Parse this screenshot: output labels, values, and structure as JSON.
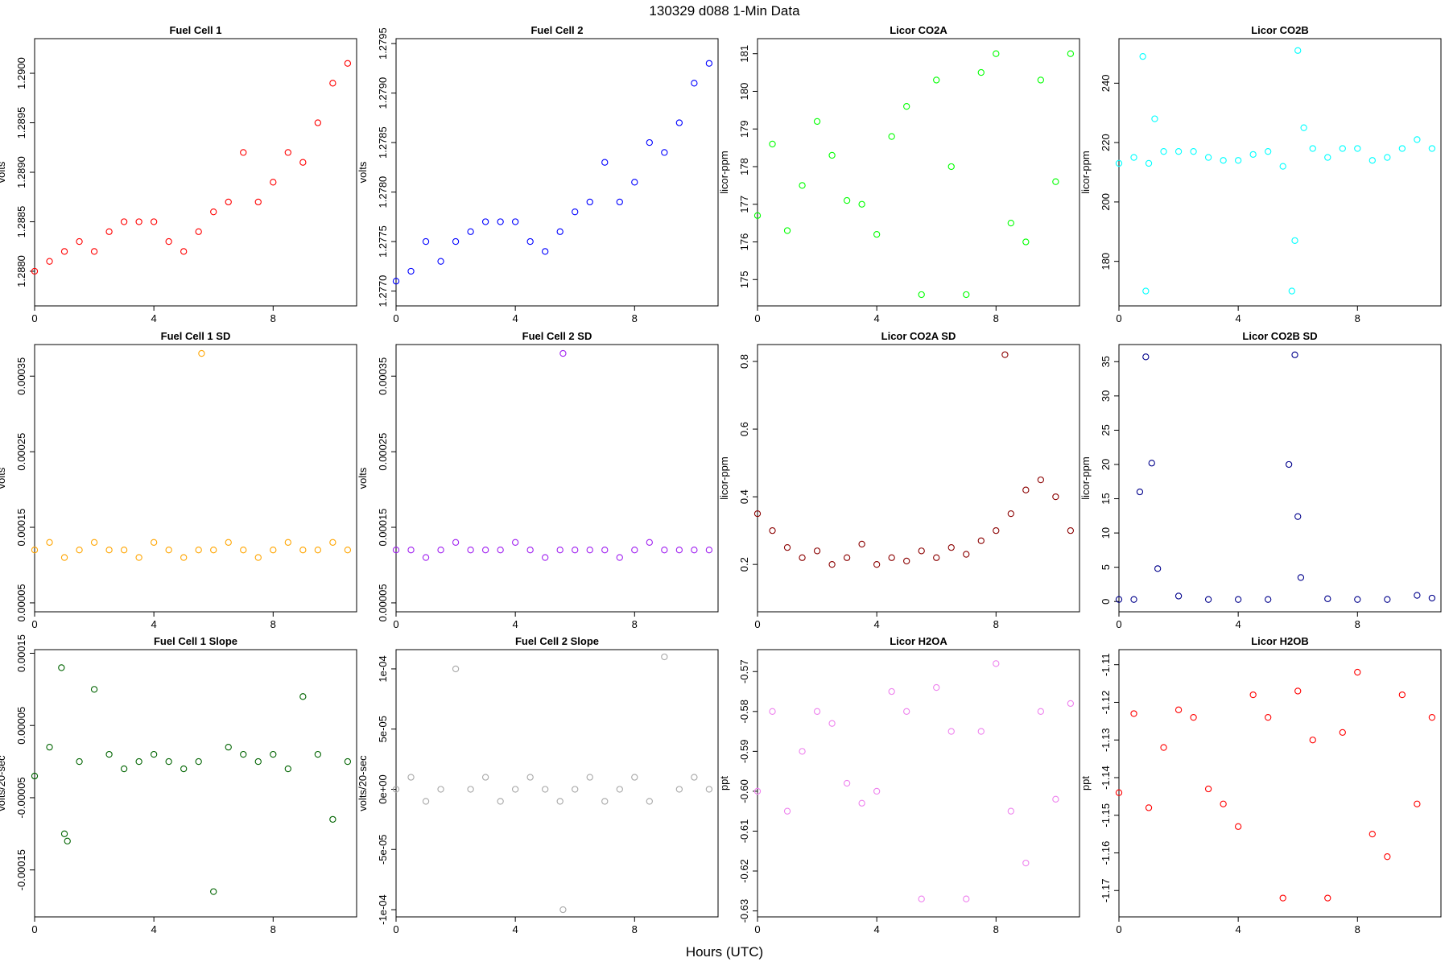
{
  "figure": {
    "title": "130329    d088    1-Min Data",
    "xlabel": "Hours (UTC)"
  },
  "chart_data": [
    {
      "type": "scatter",
      "title": "Fuel Cell 1",
      "xlabel": "",
      "ylabel": "volts",
      "color": "#ff0000",
      "xlim": [
        0,
        10.8
      ],
      "ylim": [
        1.28765,
        1.29035
      ],
      "xticks": [
        0,
        4,
        8
      ],
      "xtick_labels": [
        "0",
        "4",
        "8"
      ],
      "yticks": [
        1.288,
        1.2885,
        1.289,
        1.2895,
        1.29
      ],
      "ytick_labels": [
        "1.2880",
        "1.2885",
        "1.2890",
        "1.2895",
        "1.2900"
      ],
      "series": [
        {
          "x": [
            0,
            0.5,
            1,
            1.5,
            2,
            2.5,
            3,
            3.5,
            4,
            4.5,
            5,
            5.5,
            6,
            6.5,
            7,
            7.5,
            8,
            8.5,
            9,
            9.5,
            10,
            10.5
          ],
          "y": [
            1.288,
            1.2881,
            1.2882,
            1.2883,
            1.2882,
            1.2884,
            1.2885,
            1.2885,
            1.2885,
            1.2883,
            1.2882,
            1.2884,
            1.2886,
            1.2887,
            1.2892,
            1.2887,
            1.2889,
            1.2892,
            1.2891,
            1.2895,
            1.2899,
            1.2901
          ]
        }
      ]
    },
    {
      "type": "scatter",
      "title": "Fuel Cell 2",
      "xlabel": "",
      "ylabel": "volts",
      "color": "#0000ff",
      "xlim": [
        0,
        10.8
      ],
      "ylim": [
        1.27685,
        1.27955
      ],
      "xticks": [
        0,
        4,
        8
      ],
      "xtick_labels": [
        "0",
        "4",
        "8"
      ],
      "yticks": [
        1.277,
        1.2775,
        1.278,
        1.2785,
        1.279,
        1.2795
      ],
      "ytick_labels": [
        "1.2770",
        "1.2775",
        "1.2780",
        "1.2785",
        "1.2790",
        "1.2795"
      ],
      "series": [
        {
          "x": [
            0,
            0.5,
            1,
            1.5,
            2,
            2.5,
            3,
            3.5,
            4,
            4.5,
            5,
            5.5,
            6,
            6.5,
            7,
            7.5,
            8,
            8.5,
            9,
            9.5,
            10,
            10.5
          ],
          "y": [
            1.2771,
            1.2772,
            1.2775,
            1.2773,
            1.2775,
            1.2776,
            1.2777,
            1.2777,
            1.2777,
            1.2775,
            1.2774,
            1.2776,
            1.2778,
            1.2779,
            1.2783,
            1.2779,
            1.2781,
            1.2785,
            1.2784,
            1.2787,
            1.2791,
            1.2793
          ]
        }
      ]
    },
    {
      "type": "scatter",
      "title": "Licor CO2A",
      "xlabel": "",
      "ylabel": "licor-ppm",
      "color": "#00ff00",
      "xlim": [
        0,
        10.8
      ],
      "ylim": [
        174.3,
        181.4
      ],
      "xticks": [
        0,
        4,
        8
      ],
      "xtick_labels": [
        "0",
        "4",
        "8"
      ],
      "yticks": [
        175,
        176,
        177,
        178,
        179,
        180,
        181
      ],
      "ytick_labels": [
        "175",
        "176",
        "177",
        "178",
        "179",
        "180",
        "181"
      ],
      "series": [
        {
          "x": [
            0,
            0.5,
            1,
            1.5,
            2,
            2.5,
            3,
            3.5,
            4,
            4.5,
            5,
            5.5,
            6,
            6.5,
            7,
            7.5,
            8,
            8.5,
            9,
            9.5,
            10,
            10.5
          ],
          "y": [
            176.7,
            178.6,
            176.3,
            177.5,
            179.2,
            178.3,
            177.1,
            177.0,
            176.2,
            178.8,
            179.6,
            174.6,
            180.3,
            178.0,
            174.6,
            180.5,
            181.0,
            176.5,
            176.0,
            180.3,
            177.6,
            181.0
          ]
        }
      ]
    },
    {
      "type": "scatter",
      "title": "Licor CO2B",
      "xlabel": "",
      "ylabel": "licor-ppm",
      "color": "#00ffff",
      "xlim": [
        0,
        10.8
      ],
      "ylim": [
        165,
        255
      ],
      "xticks": [
        0,
        4,
        8
      ],
      "xtick_labels": [
        "0",
        "4",
        "8"
      ],
      "yticks": [
        180,
        200,
        220,
        240
      ],
      "ytick_labels": [
        "180",
        "200",
        "220",
        "240"
      ],
      "series": [
        {
          "x": [
            0,
            0.5,
            0.8,
            0.9,
            1.0,
            1.2,
            1.5,
            2,
            2.5,
            3,
            3.5,
            4,
            4.5,
            5,
            5.5,
            5.8,
            5.9,
            6.0,
            6.2,
            6.5,
            7,
            7.5,
            8,
            8.5,
            9,
            9.5,
            10,
            10.5
          ],
          "y": [
            213,
            215,
            249,
            170,
            213,
            228,
            217,
            217,
            217,
            215,
            214,
            214,
            216,
            217,
            212,
            170,
            187,
            251,
            225,
            218,
            215,
            218,
            218,
            214,
            215,
            218,
            221,
            218
          ]
        }
      ]
    },
    {
      "type": "scatter",
      "title": "Fuel Cell 1 SD",
      "xlabel": "",
      "ylabel": "volts",
      "color": "#ffa500",
      "xlim": [
        0,
        10.8
      ],
      "ylim": [
        3.82e-05,
        0.0003918
      ],
      "xticks": [
        0,
        4,
        8
      ],
      "xtick_labels": [
        "0",
        "4",
        "8"
      ],
      "yticks": [
        5e-05,
        0.00015,
        0.00025,
        0.00035
      ],
      "ytick_labels": [
        "0.00005",
        "0.00015",
        "0.00025",
        "0.00035"
      ],
      "series": [
        {
          "x": [
            0,
            0.5,
            1,
            1.5,
            2,
            2.5,
            3,
            3.5,
            4,
            4.5,
            5,
            5.5,
            5.6,
            6,
            6.5,
            7,
            7.5,
            8,
            8.5,
            9,
            9.5,
            10,
            10.5
          ],
          "y": [
            0.00012,
            0.00013,
            0.00011,
            0.00012,
            0.00013,
            0.00012,
            0.00012,
            0.00011,
            0.00013,
            0.00012,
            0.00011,
            0.00012,
            0.00038,
            0.00012,
            0.00013,
            0.00012,
            0.00011,
            0.00012,
            0.00013,
            0.00012,
            0.00012,
            0.00013,
            0.00012
          ]
        }
      ]
    },
    {
      "type": "scatter",
      "title": "Fuel Cell 2 SD",
      "xlabel": "",
      "ylabel": "volts",
      "color": "#a020f0",
      "xlim": [
        0,
        10.8
      ],
      "ylim": [
        3.82e-05,
        0.0003918
      ],
      "xticks": [
        0,
        4,
        8
      ],
      "xtick_labels": [
        "0",
        "4",
        "8"
      ],
      "yticks": [
        5e-05,
        0.00015,
        0.00025,
        0.00035
      ],
      "ytick_labels": [
        "0.00005",
        "0.00015",
        "0.00025",
        "0.00035"
      ],
      "series": [
        {
          "x": [
            0,
            0.5,
            1,
            1.5,
            2,
            2.5,
            3,
            3.5,
            4,
            4.5,
            5,
            5.5,
            5.6,
            6,
            6.5,
            7,
            7.5,
            8,
            8.5,
            9,
            9.5,
            10,
            10.5
          ],
          "y": [
            0.00012,
            0.00012,
            0.00011,
            0.00012,
            0.00013,
            0.00012,
            0.00012,
            0.00012,
            0.00013,
            0.00012,
            0.00011,
            0.00012,
            0.00038,
            0.00012,
            0.00012,
            0.00012,
            0.00011,
            0.00012,
            0.00013,
            0.00012,
            0.00012,
            0.00012,
            0.00012
          ]
        }
      ]
    },
    {
      "type": "scatter",
      "title": "Licor CO2A SD",
      "xlabel": "",
      "ylabel": "licor-ppm",
      "color": "#8b0000",
      "xlim": [
        0,
        10.8
      ],
      "ylim": [
        0.06,
        0.85
      ],
      "xticks": [
        0,
        4,
        8
      ],
      "xtick_labels": [
        "0",
        "4",
        "8"
      ],
      "yticks": [
        0.2,
        0.4,
        0.6,
        0.8
      ],
      "ytick_labels": [
        "0.2",
        "0.4",
        "0.6",
        "0.8"
      ],
      "series": [
        {
          "x": [
            0,
            0.5,
            1,
            1.5,
            2,
            2.5,
            3,
            3.5,
            4,
            4.5,
            5,
            5.5,
            6,
            6.5,
            7,
            7.5,
            8,
            8.3,
            8.5,
            9,
            9.5,
            10,
            10.5
          ],
          "y": [
            0.35,
            0.3,
            0.25,
            0.22,
            0.24,
            0.2,
            0.22,
            0.26,
            0.2,
            0.22,
            0.21,
            0.24,
            0.22,
            0.25,
            0.23,
            0.27,
            0.3,
            0.82,
            0.35,
            0.42,
            0.45,
            0.4,
            0.3
          ]
        }
      ]
    },
    {
      "type": "scatter",
      "title": "Licor CO2B SD",
      "xlabel": "",
      "ylabel": "licor-ppm",
      "color": "#00008b",
      "xlim": [
        0,
        10.8
      ],
      "ylim": [
        -1.5,
        37.5
      ],
      "xticks": [
        0,
        4,
        8
      ],
      "xtick_labels": [
        "0",
        "4",
        "8"
      ],
      "yticks": [
        0,
        5,
        10,
        15,
        20,
        25,
        30,
        35
      ],
      "ytick_labels": [
        "0",
        "5",
        "10",
        "15",
        "20",
        "25",
        "30",
        "35"
      ],
      "series": [
        {
          "x": [
            0,
            0.5,
            0.7,
            0.9,
            1.1,
            1.3,
            2,
            3,
            4,
            5,
            5.7,
            5.9,
            6.0,
            6.1,
            7,
            8,
            9,
            10,
            10.5
          ],
          "y": [
            0.3,
            0.3,
            16,
            35.7,
            20.2,
            4.8,
            0.8,
            0.3,
            0.3,
            0.3,
            20,
            36,
            12.4,
            3.5,
            0.4,
            0.3,
            0.3,
            0.9,
            0.5
          ]
        }
      ]
    },
    {
      "type": "scatter",
      "title": "Fuel Cell 1 Slope",
      "xlabel": "",
      "ylabel": "volts/20-sec",
      "color": "#006400",
      "xlim": [
        0,
        10.8
      ],
      "ylim": [
        -0.000215,
        0.000155
      ],
      "xticks": [
        0,
        4,
        8
      ],
      "xtick_labels": [
        "0",
        "4",
        "8"
      ],
      "yticks": [
        -0.00015,
        -5e-05,
        5e-05,
        0.00015
      ],
      "ytick_labels": [
        "-0.00015",
        "-0.00005",
        "0.00005",
        "0.00015"
      ],
      "series": [
        {
          "x": [
            0,
            0.5,
            0.9,
            1,
            1.1,
            1.5,
            2,
            2.5,
            3,
            3.5,
            4,
            4.5,
            5,
            5.5,
            6,
            6.5,
            7,
            7.5,
            8,
            8.5,
            9,
            9.5,
            10,
            10.5
          ],
          "y": [
            -2e-05,
            2e-05,
            0.00013,
            -0.0001,
            -0.00011,
            0.0,
            0.0001,
            1e-05,
            -1e-05,
            0.0,
            1e-05,
            0.0,
            -1e-05,
            0.0,
            -0.00018,
            2e-05,
            1e-05,
            0.0,
            1e-05,
            -1e-05,
            9e-05,
            1e-05,
            -8e-05,
            0.0
          ]
        }
      ]
    },
    {
      "type": "scatter",
      "title": "Fuel Cell 2 Slope",
      "xlabel": "",
      "ylabel": "volts/20-sec",
      "color": "#a8a8a8",
      "xlim": [
        0,
        10.8
      ],
      "ylim": [
        -0.000106,
        0.000116
      ],
      "xticks": [
        0,
        4,
        8
      ],
      "xtick_labels": [
        "0",
        "4",
        "8"
      ],
      "yticks": [
        -0.0001,
        -5e-05,
        0.0,
        5e-05,
        0.0001
      ],
      "ytick_labels": [
        "-1e-04",
        "-5e-05",
        "0e+00",
        "5e-05",
        "1e-04"
      ],
      "series": [
        {
          "x": [
            0,
            0.5,
            1,
            1.5,
            2,
            2.5,
            3,
            3.5,
            4,
            4.5,
            5,
            5.5,
            5.6,
            6,
            6.5,
            7,
            7.5,
            8,
            8.5,
            9,
            9.5,
            10,
            10.5
          ],
          "y": [
            0.0,
            1e-05,
            -1e-05,
            0.0,
            0.0001,
            0.0,
            1e-05,
            -1e-05,
            0.0,
            1e-05,
            0.0,
            -1e-05,
            -0.0001,
            0.0,
            1e-05,
            -1e-05,
            0.0,
            1e-05,
            -1e-05,
            0.00011,
            0.0,
            1e-05,
            0.0
          ]
        }
      ]
    },
    {
      "type": "scatter",
      "title": "Licor H2OA",
      "xlabel": "",
      "ylabel": "ppt",
      "color": "#ee82ee",
      "xlim": [
        0,
        10.8
      ],
      "ylim": [
        -0.6315,
        -0.5645
      ],
      "xticks": [
        0,
        4,
        8
      ],
      "xtick_labels": [
        "0",
        "4",
        "8"
      ],
      "yticks": [
        -0.63,
        -0.62,
        -0.61,
        -0.6,
        -0.59,
        -0.58,
        -0.57
      ],
      "ytick_labels": [
        "-0.63",
        "-0.62",
        "-0.61",
        "-0.60",
        "-0.59",
        "-0.58",
        "-0.57"
      ],
      "series": [
        {
          "x": [
            0,
            0.5,
            1,
            1.5,
            2,
            2.5,
            3,
            3.5,
            4,
            4.5,
            5,
            5.5,
            6,
            6.5,
            7,
            7.5,
            8,
            8.5,
            9,
            9.5,
            10,
            10.5
          ],
          "y": [
            -0.6,
            -0.58,
            -0.605,
            -0.59,
            -0.58,
            -0.583,
            -0.598,
            -0.603,
            -0.6,
            -0.575,
            -0.58,
            -0.627,
            -0.574,
            -0.585,
            -0.627,
            -0.585,
            -0.568,
            -0.605,
            -0.618,
            -0.58,
            -0.602,
            -0.578
          ]
        }
      ]
    },
    {
      "type": "scatter",
      "title": "Licor H2OB",
      "xlabel": "",
      "ylabel": "ppt",
      "color": "#ff0000",
      "xlim": [
        0,
        10.8
      ],
      "ylim": [
        -1.177,
        -1.106
      ],
      "xticks": [
        0,
        4,
        8
      ],
      "xtick_labels": [
        "0",
        "4",
        "8"
      ],
      "yticks": [
        -1.17,
        -1.16,
        -1.15,
        -1.14,
        -1.13,
        -1.12,
        -1.11
      ],
      "ytick_labels": [
        "-1.17",
        "-1.16",
        "-1.15",
        "-1.14",
        "-1.13",
        "-1.12",
        "-1.11"
      ],
      "series": [
        {
          "x": [
            0,
            0.5,
            1,
            1.5,
            2,
            2.5,
            3,
            3.5,
            4,
            4.5,
            5,
            5.5,
            6,
            6.5,
            7,
            7.5,
            8,
            8.5,
            9,
            9.5,
            10,
            10.5
          ],
          "y": [
            -1.144,
            -1.123,
            -1.148,
            -1.132,
            -1.122,
            -1.124,
            -1.143,
            -1.147,
            -1.153,
            -1.118,
            -1.124,
            -1.172,
            -1.117,
            -1.13,
            -1.172,
            -1.128,
            -1.112,
            -1.155,
            -1.161,
            -1.118,
            -1.147,
            -1.124
          ]
        }
      ]
    }
  ]
}
